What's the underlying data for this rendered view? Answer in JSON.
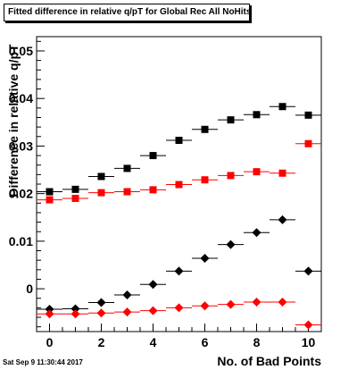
{
  "title": "Fitted difference in relative q/pT for Global Rec All NoHits",
  "timestamp": "Sat Sep  9 11:30:44 2017",
  "chart_data": {
    "type": "scatter",
    "title": "Fitted difference in relative q/pT for Global Rec All NoHits",
    "xlabel": "No. of Bad Points",
    "ylabel": "Difference in relative q/pT",
    "xlim": [
      -0.5,
      10.5
    ],
    "ylim": [
      -0.009,
      0.053
    ],
    "x_ticks": [
      0,
      2,
      4,
      6,
      8,
      10
    ],
    "y_ticks": [
      0,
      0.01,
      0.02,
      0.03,
      0.04,
      0.05
    ],
    "y_tick_labels": [
      "0",
      "0.01",
      "0.02",
      "0.03",
      "0.04",
      "0.05"
    ],
    "x_tick_labels": [
      "0",
      "2",
      "4",
      "6",
      "8",
      "10"
    ],
    "grid": false,
    "legend": false,
    "series": [
      {
        "marker": "square",
        "color": "#000000",
        "x": [
          0,
          1,
          2,
          3,
          4,
          5,
          6,
          7,
          8,
          9,
          10
        ],
        "y": [
          0.0204,
          0.0209,
          0.0236,
          0.0253,
          0.028,
          0.0312,
          0.0335,
          0.0355,
          0.0366,
          0.0383,
          0.0365
        ]
      },
      {
        "marker": "square",
        "color": "#ff0000",
        "x": [
          0,
          1,
          2,
          3,
          4,
          5,
          6,
          7,
          8,
          9,
          10
        ],
        "y": [
          0.0187,
          0.019,
          0.0202,
          0.0204,
          0.0208,
          0.0219,
          0.0229,
          0.0238,
          0.0246,
          0.0243,
          0.0305
        ]
      },
      {
        "marker": "diamond",
        "color": "#000000",
        "x": [
          0,
          1,
          2,
          3,
          4,
          5,
          6,
          7,
          8,
          9,
          10
        ],
        "y": [
          -0.0043,
          -0.0042,
          -0.0029,
          -0.0013,
          0.0009,
          0.0037,
          0.0064,
          0.0093,
          0.0118,
          0.0145,
          0.0037
        ]
      },
      {
        "marker": "diamond",
        "color": "#ff0000",
        "x": [
          0,
          1,
          2,
          3,
          4,
          5,
          6,
          7,
          8,
          9,
          10
        ],
        "y": [
          -0.0053,
          -0.0053,
          -0.0051,
          -0.0049,
          -0.0046,
          -0.004,
          -0.0036,
          -0.0033,
          -0.0028,
          -0.0028,
          -0.0076
        ]
      }
    ]
  }
}
